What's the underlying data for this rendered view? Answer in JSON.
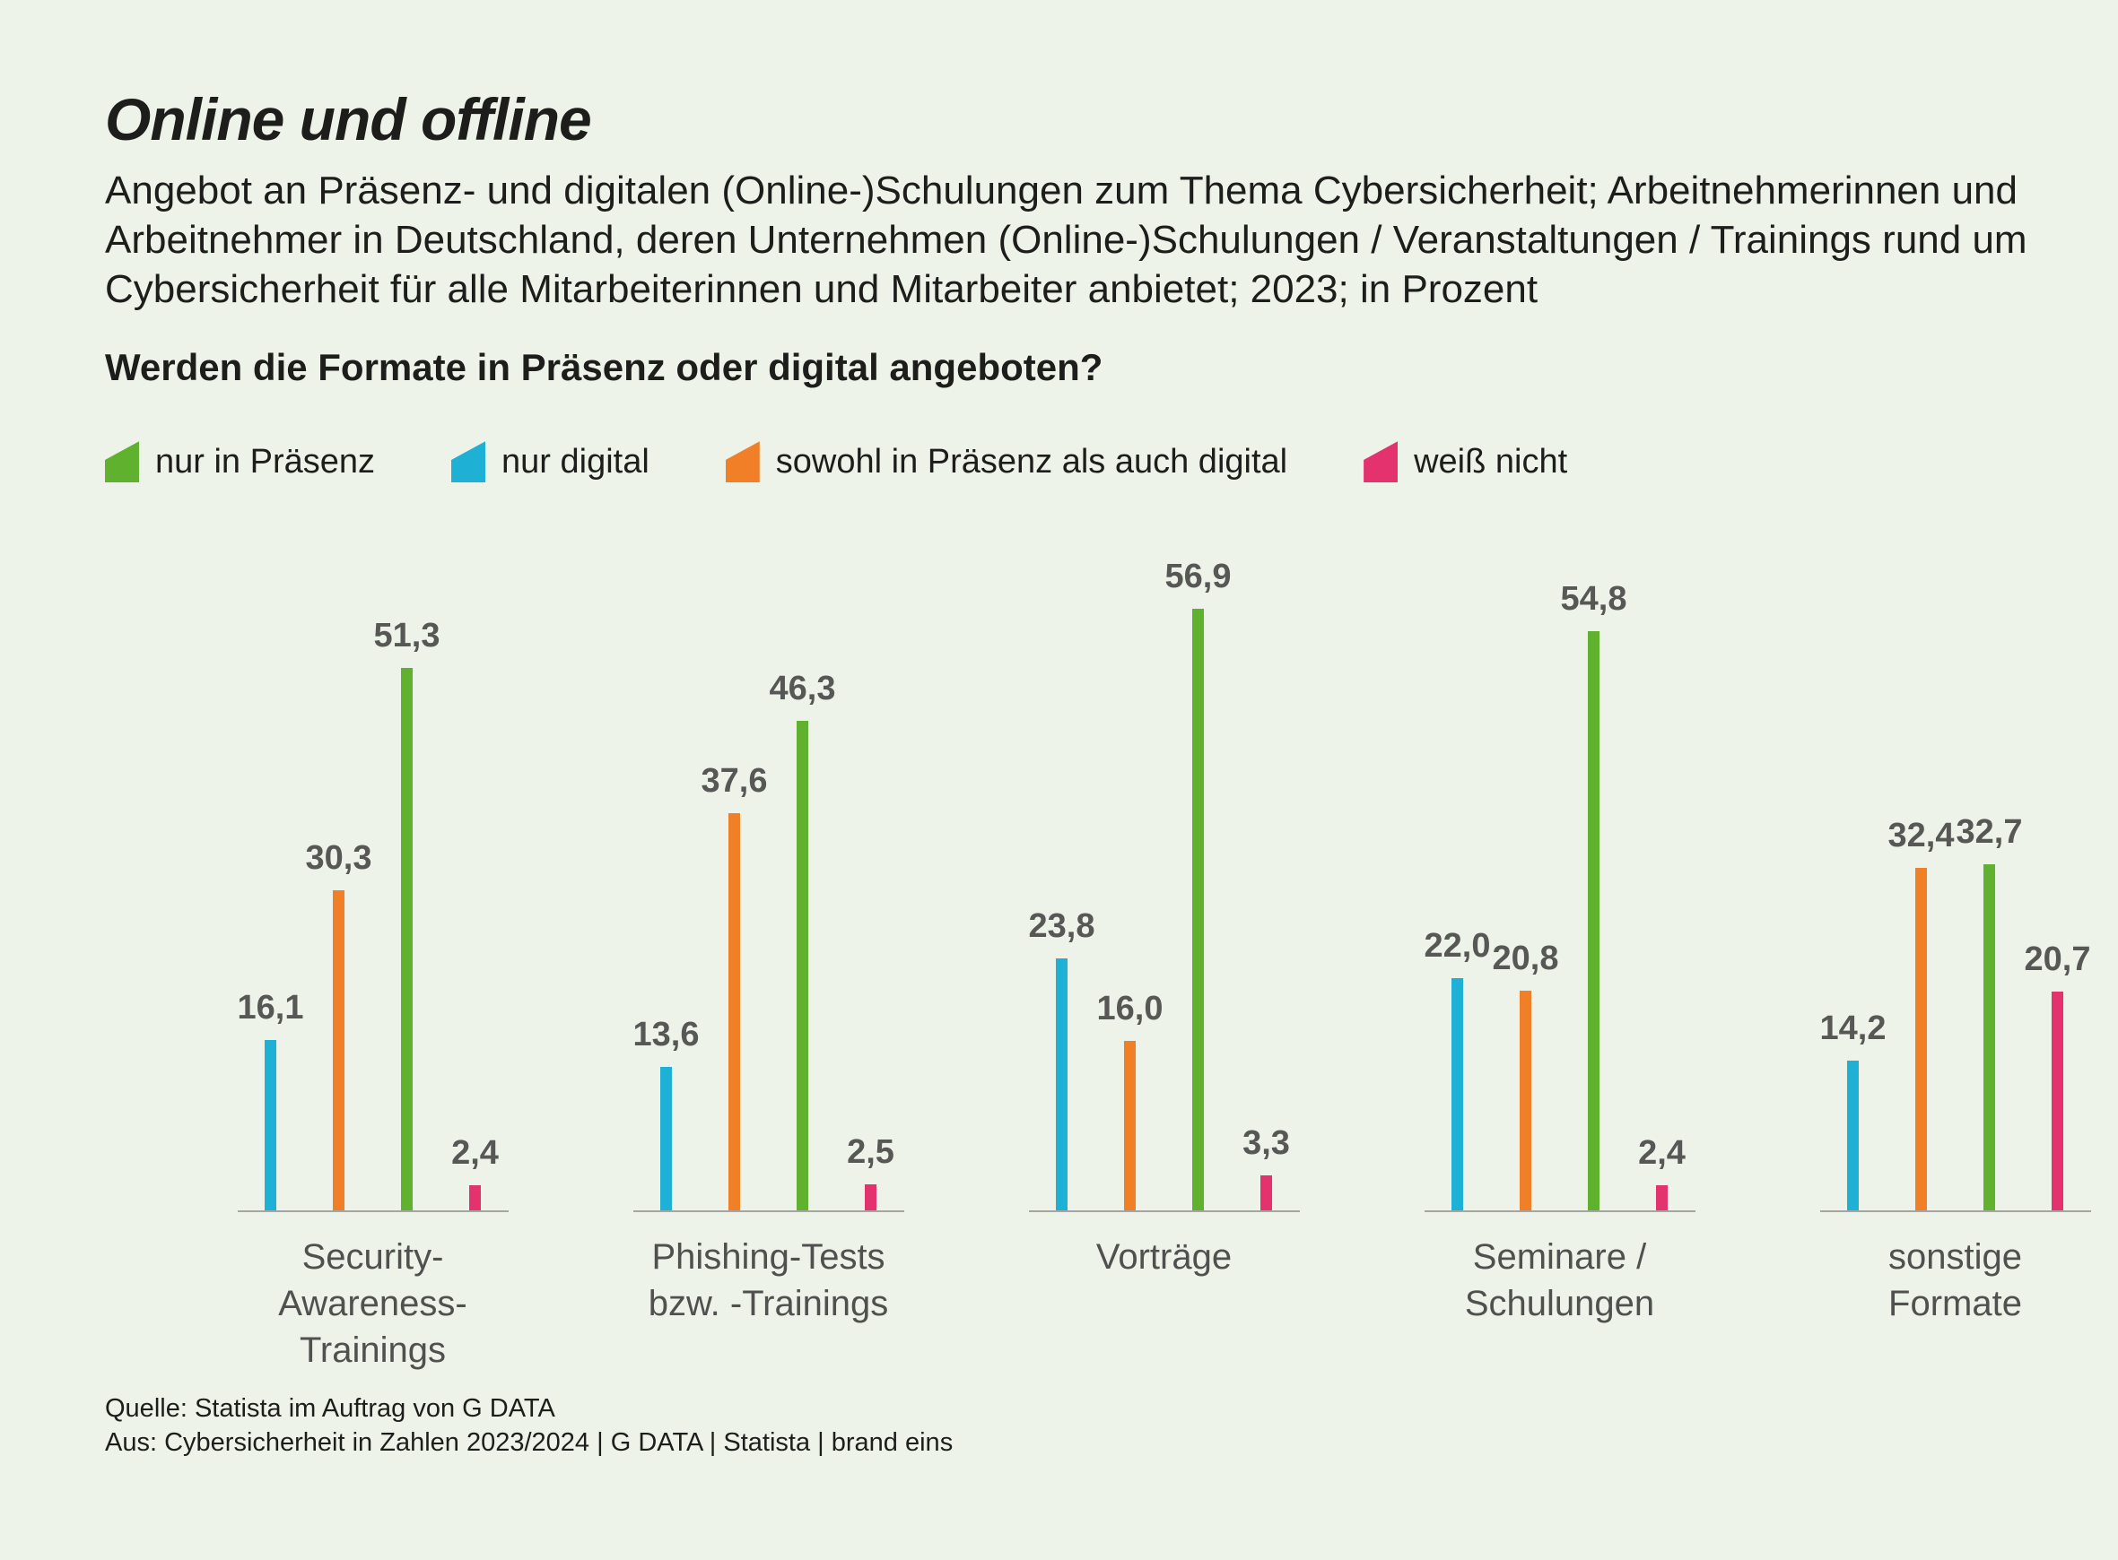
{
  "title": "Online und offline",
  "subtitle": "Angebot an Präsenz- und digitalen (Online-)Schulungen zum Thema Cybersicherheit; Arbeitnehmerinnen und\nArbeitnehmer in Deutschland, deren Unternehmen (Online-)Schulungen / Veranstaltungen / Trainings rund um\nCybersicherheit für alle Mitarbeiterinnen und Mitarbeiter anbietet; 2023; in Prozent",
  "question": "Werden die Formate in Präsenz oder digital angeboten?",
  "colors": {
    "background": "#edf3e9",
    "green": "#60b22e",
    "cyan": "#1fb0d6",
    "orange": "#f07f27",
    "pink": "#e4326f",
    "value_label": "#575756",
    "baseline": "#a5a5a4"
  },
  "legend": [
    {
      "label": "nur in Präsenz",
      "color": "#60b22e"
    },
    {
      "label": "nur digital",
      "color": "#1fb0d6"
    },
    {
      "label": "sowohl in Präsenz als auch digital",
      "color": "#f07f27"
    },
    {
      "label": "weiß nicht",
      "color": "#e4326f"
    }
  ],
  "chart_data": {
    "type": "bar",
    "title": "Online und offline",
    "unit": "Prozent",
    "ylim": [
      0,
      60
    ],
    "grid": false,
    "legend_position": "top",
    "categories": [
      "Security-\nAwareness-\nTrainings",
      "Phishing-Tests\nbzw. -Trainings",
      "Vorträge",
      "Seminare /\nSchulungen",
      "sonstige\nFormate"
    ],
    "series": [
      {
        "key": "nur-digital",
        "name": "nur digital",
        "color": "#1fb0d6",
        "values": [
          16.1,
          13.6,
          23.8,
          22.0,
          14.2
        ],
        "labels": [
          "16,1",
          "13,6",
          "23,8",
          "22,0",
          "14,2"
        ]
      },
      {
        "key": "praesenz-und-digital",
        "name": "sowohl in Präsenz als auch digital",
        "color": "#f07f27",
        "values": [
          30.3,
          37.6,
          16.0,
          20.8,
          32.4
        ],
        "labels": [
          "30,3",
          "37,6",
          "16,0",
          "20,8",
          "32,4"
        ]
      },
      {
        "key": "nur-praesenz",
        "name": "nur in Präsenz",
        "color": "#60b22e",
        "values": [
          51.3,
          46.3,
          56.9,
          54.8,
          32.7
        ],
        "labels": [
          "51,3",
          "46,3",
          "56,9",
          "54,8",
          "32,7"
        ]
      },
      {
        "key": "weiss-nicht",
        "name": "weiß nicht",
        "color": "#e4326f",
        "values": [
          2.4,
          2.5,
          3.3,
          2.4,
          20.7
        ],
        "labels": [
          "2,4",
          "2,5",
          "3,3",
          "2,4",
          "20,7"
        ]
      }
    ]
  },
  "source": {
    "line1": "Quelle: Statista im Auftrag von G DATA",
    "line2": "Aus: Cybersicherheit in Zahlen 2023/2024 | G DATA | Statista | brand eins"
  }
}
